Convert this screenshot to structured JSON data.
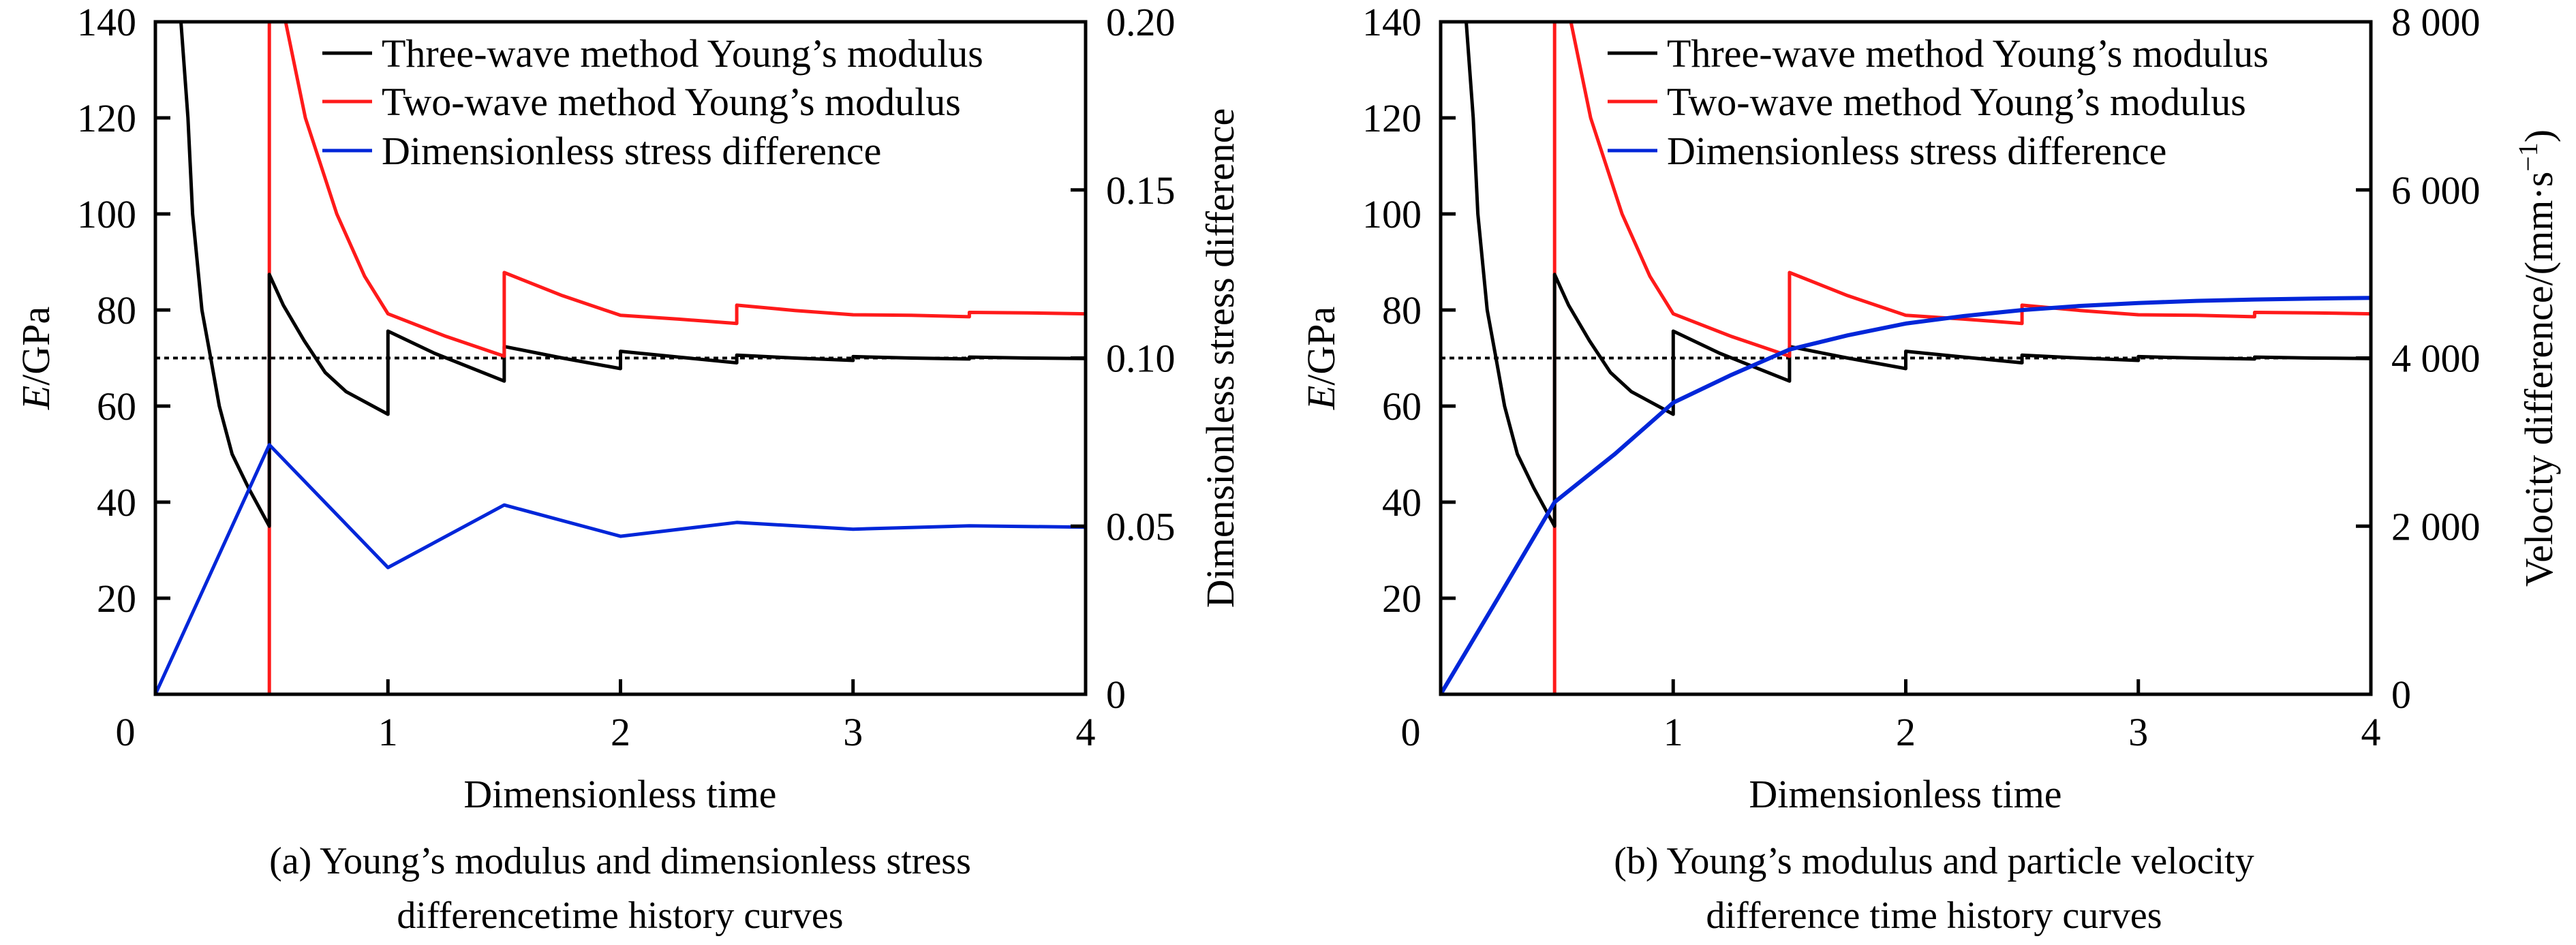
{
  "figure": {
    "captions": [
      [
        "(a) Young’s modulus and dimensionless stress",
        "differencetime history curves"
      ],
      [
        "(b) Young’s modulus and particle velocity",
        "difference time history curves"
      ]
    ]
  },
  "chart_data": [
    {
      "type": "line",
      "panel": "a",
      "title": "(a) Young’s modulus and dimensionless stress differencetime history curves",
      "xlabel": "Dimensionless time",
      "ylabel": "E/GPa",
      "ylabel_italic": "E",
      "ylabel_rest": "/GPa",
      "y2label": "Dimensionless stress difference",
      "xlim": [
        0,
        4
      ],
      "ylim": [
        0,
        140
      ],
      "y2lim": [
        0,
        0.2
      ],
      "xticks": [
        0,
        1,
        2,
        3,
        4
      ],
      "xtick_labels": [
        "0",
        "1",
        "2",
        "3",
        "4"
      ],
      "yticks": [
        20,
        40,
        60,
        80,
        100,
        120,
        140
      ],
      "ytick_labels": [
        "20",
        "40",
        "60",
        "80",
        "100",
        "120",
        "140"
      ],
      "y0_label": "0",
      "y2ticks": [
        0,
        0.05,
        0.1,
        0.15,
        0.2
      ],
      "y2tick_labels": [
        "0",
        "0.05",
        "0.10",
        "0.15",
        "0.20"
      ],
      "grid": false,
      "legend_position": "top-right",
      "reference_line": {
        "axis": "y",
        "value": 70,
        "style": "dotted",
        "color": "#000000"
      },
      "vertical_line": {
        "x": 0.49,
        "color": "#ff1a1a"
      },
      "series": [
        {
          "name": "Three-wave method Young’s modulus",
          "axis": "left",
          "color": "#000000",
          "x": [
            0.11,
            0.14,
            0.16,
            0.2,
            0.238,
            0.275,
            0.33,
            0.4,
            0.49,
            0.49,
            0.55,
            0.64,
            0.73,
            0.82,
            1.0,
            1.0,
            1.2,
            1.5,
            1.5,
            1.75,
            2.0,
            2.0,
            2.25,
            2.5,
            2.5,
            2.75,
            3.0,
            3.0,
            3.25,
            3.5,
            3.5,
            3.75,
            4.0
          ],
          "y": [
            140,
            120,
            100,
            80,
            70,
            60,
            50,
            43,
            35,
            87.4,
            81,
            73.6,
            67,
            63,
            58.3,
            75.6,
            71,
            65.2,
            72.4,
            70,
            67.8,
            71.4,
            70.2,
            69,
            70.6,
            70,
            69.5,
            70.3,
            70,
            69.8,
            70.2,
            70,
            69.9
          ]
        },
        {
          "name": "Two-wave method Young’s modulus",
          "axis": "left",
          "color": "#ff1a1a",
          "x": [
            0.56,
            0.645,
            0.78,
            0.9,
            1.0,
            1.25,
            1.5,
            1.5,
            1.75,
            2.0,
            2.25,
            2.5,
            2.5,
            2.75,
            3.0,
            3.25,
            3.5,
            3.5,
            3.75,
            4.0
          ],
          "y": [
            140,
            120,
            100,
            87,
            79.2,
            74.5,
            70.4,
            87.8,
            83,
            78.9,
            78.1,
            77.2,
            81,
            79.9,
            79,
            78.9,
            78.6,
            79.5,
            79.4,
            79.2
          ]
        },
        {
          "name": "Dimensionless stress difference",
          "axis": "right",
          "color": "#0026d9",
          "x": [
            0,
            0.49,
            1.0,
            1.5,
            2.0,
            2.5,
            3.0,
            3.5,
            4.0
          ],
          "y": [
            0,
            0.0742,
            0.0377,
            0.0563,
            0.047,
            0.0511,
            0.0491,
            0.0501,
            0.0497
          ]
        }
      ]
    },
    {
      "type": "line",
      "panel": "b",
      "title": "(b) Young’s modulus and particle velocity difference time history curves",
      "xlabel": "Dimensionless time",
      "ylabel": "E/GPa",
      "ylabel_italic": "E",
      "ylabel_rest": "/GPa",
      "y2label": "Velocity difference/(mm·s",
      "y2label_sup": "−1",
      "y2label_close": ")",
      "xlim": [
        0,
        4
      ],
      "ylim": [
        0,
        140
      ],
      "y2lim": [
        0,
        8000
      ],
      "xticks": [
        0,
        1,
        2,
        3,
        4
      ],
      "xtick_labels": [
        "0",
        "1",
        "2",
        "3",
        "4"
      ],
      "yticks": [
        20,
        40,
        60,
        80,
        100,
        120,
        140
      ],
      "ytick_labels": [
        "20",
        "40",
        "60",
        "80",
        "100",
        "120",
        "140"
      ],
      "y0_label": "0",
      "y2ticks": [
        0,
        2000,
        4000,
        6000,
        8000
      ],
      "y2tick_labels": [
        "0",
        "2 000",
        "4 000",
        "6 000",
        "8 000"
      ],
      "grid": false,
      "legend_position": "top-right",
      "reference_line": {
        "axis": "y",
        "value": 70,
        "style": "dotted",
        "color": "#000000"
      },
      "vertical_line": {
        "x": 0.49,
        "color": "#ff1a1a"
      },
      "series": [
        {
          "name": "Three-wave method Young’s modulus",
          "axis": "left",
          "color": "#000000",
          "x": [
            0.11,
            0.14,
            0.16,
            0.2,
            0.238,
            0.275,
            0.33,
            0.4,
            0.49,
            0.49,
            0.55,
            0.64,
            0.73,
            0.82,
            1.0,
            1.0,
            1.2,
            1.5,
            1.5,
            1.75,
            2.0,
            2.0,
            2.25,
            2.5,
            2.5,
            2.75,
            3.0,
            3.0,
            3.25,
            3.5,
            3.5,
            3.75,
            4.0
          ],
          "y": [
            140,
            120,
            100,
            80,
            70,
            60,
            50,
            43,
            35,
            87.4,
            81,
            73.6,
            67,
            63,
            58.3,
            75.6,
            71,
            65.2,
            72.4,
            70,
            67.8,
            71.4,
            70.2,
            69,
            70.6,
            70,
            69.5,
            70.3,
            70,
            69.8,
            70.2,
            70,
            69.9
          ]
        },
        {
          "name": "Two-wave method Young’s modulus",
          "axis": "left",
          "color": "#ff1a1a",
          "x": [
            0.56,
            0.645,
            0.78,
            0.9,
            1.0,
            1.25,
            1.5,
            1.5,
            1.75,
            2.0,
            2.25,
            2.5,
            2.5,
            2.75,
            3.0,
            3.25,
            3.5,
            3.5,
            3.75,
            4.0
          ],
          "y": [
            140,
            120,
            100,
            87,
            79.2,
            74.5,
            70.4,
            87.8,
            83,
            78.9,
            78.1,
            77.2,
            81,
            79.9,
            79,
            78.9,
            78.6,
            79.5,
            79.4,
            79.2
          ]
        },
        {
          "name": "Dimensionless stress difference",
          "axis": "right",
          "color": "#0026d9",
          "x": [
            0,
            0.25,
            0.49,
            0.75,
            1.0,
            1.25,
            1.5,
            1.75,
            2.0,
            2.25,
            2.5,
            2.75,
            3.0,
            3.25,
            3.5,
            3.75,
            4.0
          ],
          "y": [
            0,
            1160,
            2286,
            2860,
            3469,
            3800,
            4101,
            4270,
            4410,
            4500,
            4571,
            4620,
            4655,
            4680,
            4696,
            4708,
            4716
          ]
        }
      ]
    }
  ]
}
